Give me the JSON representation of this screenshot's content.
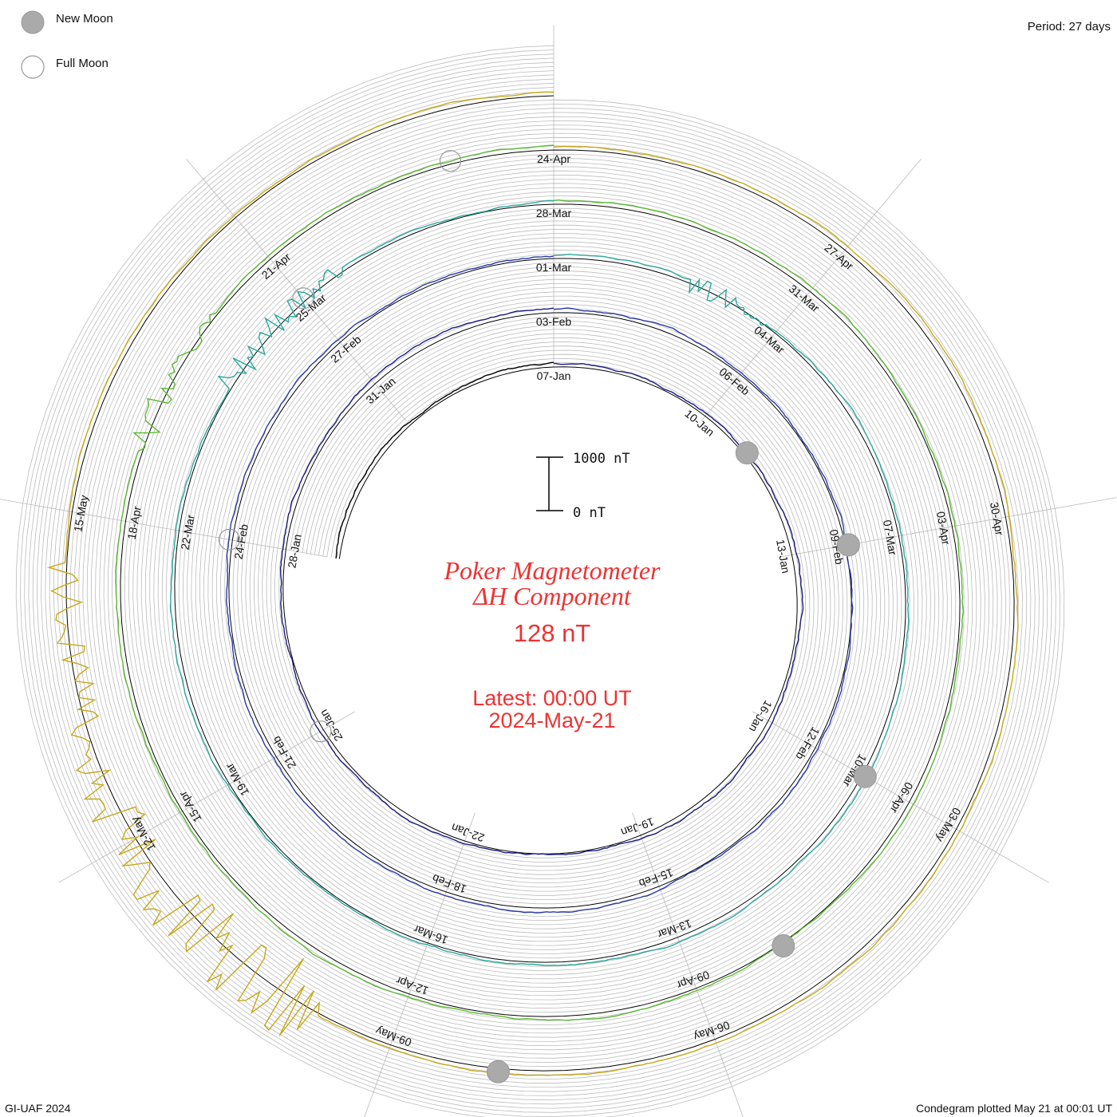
{
  "header": {
    "period": "Period: 27 days",
    "legend_new_moon": "New Moon",
    "legend_full_moon": "Full Moon"
  },
  "footer": {
    "left": "GI-UAF 2024",
    "right": "Condegram plotted May 21 at 00:01 UT"
  },
  "center": {
    "title_line1": "Poker Magnetometer",
    "title_line2": "ΔH Component",
    "baseline": "128 nT",
    "latest_line1": "Latest: 00:00 UT",
    "latest_line2": "2024-May-21",
    "scale_top": "1000 nT",
    "scale_bottom": "0 nT"
  },
  "colors": {
    "title": "#ee3333",
    "grid": "#bbbbbb",
    "reference": "#000000",
    "moon_fill": "#aaaaaa",
    "moon_stroke": "#999999"
  },
  "chart_data": {
    "type": "line",
    "series": [
      {
        "color": "#000000",
        "start_date": "2024-01-01",
        "end_date": "2024-01-07"
      },
      {
        "color": "#1a1a80",
        "start_date": "2024-01-07",
        "end_date": "2024-02-03"
      },
      {
        "color": "#2a3aa8",
        "start_date": "2024-02-03",
        "end_date": "2024-03-01"
      },
      {
        "color": "#2aa8a0",
        "start_date": "2024-03-01",
        "end_date": "2024-03-28"
      },
      {
        "color": "#5ab830",
        "start_date": "2024-03-28",
        "end_date": "2024-04-24"
      },
      {
        "color": "#c8a818",
        "start_date": "2024-04-24",
        "end_date": "2024-05-21"
      }
    ],
    "date_labels": [
      "07-Jan",
      "10-Jan",
      "13-Jan",
      "16-Jan",
      "19-Jan",
      "22-Jan",
      "25-Jan",
      "28-Jan",
      "31-Jan",
      "03-Feb",
      "06-Feb",
      "09-Feb",
      "12-Feb",
      "15-Feb",
      "18-Feb",
      "21-Feb",
      "24-Feb",
      "27-Feb",
      "01-Mar",
      "04-Mar",
      "07-Mar",
      "10-Mar",
      "13-Mar",
      "16-Mar",
      "19-Mar",
      "22-Mar",
      "25-Mar",
      "28-Mar",
      "31-Mar",
      "03-Apr",
      "06-Apr",
      "09-Apr",
      "12-Apr",
      "15-Apr",
      "18-Apr",
      "21-Apr",
      "24-Apr",
      "27-Apr",
      "30-Apr",
      "03-May",
      "06-May",
      "09-May",
      "12-May",
      "15-May"
    ],
    "new_moon_dates": [
      "2024-01-11",
      "2024-02-09",
      "2024-03-10",
      "2024-04-08",
      "2024-05-08"
    ],
    "full_moon_dates": [
      "2024-01-25",
      "2024-02-24",
      "2024-03-25",
      "2024-04-23"
    ],
    "scale_bar": {
      "top": "1000 nT",
      "bottom": "0 nT"
    },
    "period_days": 27
  }
}
